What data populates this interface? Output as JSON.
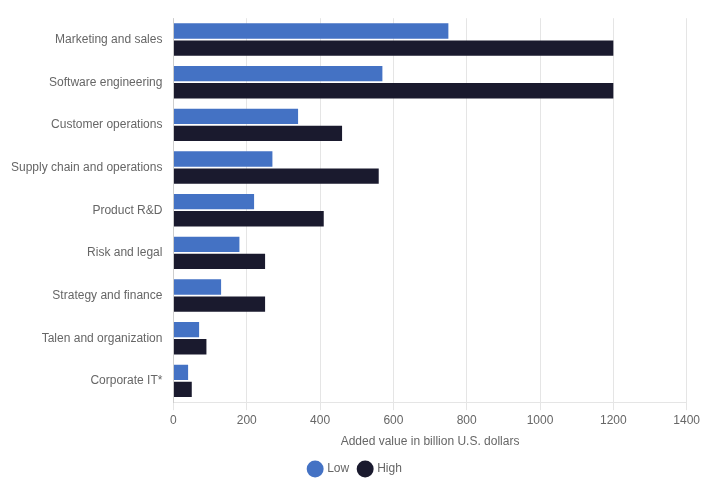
{
  "chart_data": {
    "type": "bar",
    "orientation": "horizontal",
    "categories": [
      "Marketing and sales",
      "Software engineering",
      "Customer operations",
      "Supply chain and operations",
      "Product R&D",
      "Risk and legal",
      "Strategy and finance",
      "Talen and organization",
      "Corporate IT*"
    ],
    "series": [
      {
        "name": "Low",
        "color": "#4472c4",
        "values": [
          750,
          570,
          340,
          270,
          220,
          180,
          130,
          70,
          40
        ]
      },
      {
        "name": "High",
        "color": "#1a1a2e",
        "values": [
          1200,
          1200,
          460,
          560,
          410,
          250,
          250,
          90,
          50
        ]
      }
    ],
    "xlabel": "Added value in billion U.S. dollars",
    "xlim": [
      0,
      1400
    ],
    "xticks": [
      0,
      200,
      400,
      600,
      800,
      1000,
      1200,
      1400
    ],
    "grid": true,
    "legend": "bottom"
  }
}
